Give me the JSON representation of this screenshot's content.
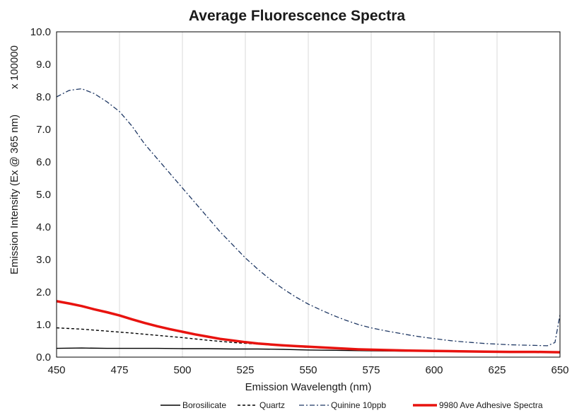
{
  "chart_data": {
    "type": "line",
    "title": "Average Fluorescence Spectra",
    "xlabel": "Emission Wavelength (nm)",
    "ylabel": "Emission Intensity (Ex @ 365 nm)",
    "y_multiplier_label": "x 100000",
    "xlim": [
      450,
      650
    ],
    "ylim": [
      0,
      10
    ],
    "x_ticks": [
      "450",
      "475",
      "500",
      "525",
      "550",
      "575",
      "600",
      "625",
      "650"
    ],
    "y_ticks": [
      "0.0",
      "1.0",
      "2.0",
      "3.0",
      "4.0",
      "5.0",
      "6.0",
      "7.0",
      "8.0",
      "9.0",
      "10.0"
    ],
    "grid": "vertical",
    "legend_position": "bottom",
    "series": [
      {
        "name": "Borosilicate",
        "color": "#000000",
        "style": "solid",
        "x": [
          450,
          460,
          470,
          480,
          490,
          500,
          510,
          520,
          530,
          540,
          550,
          560,
          570,
          580,
          590,
          600,
          610,
          620,
          630,
          640,
          650
        ],
        "y": [
          0.27,
          0.28,
          0.27,
          0.27,
          0.27,
          0.26,
          0.26,
          0.25,
          0.25,
          0.24,
          0.22,
          0.21,
          0.2,
          0.19,
          0.18,
          0.18,
          0.17,
          0.17,
          0.16,
          0.16,
          0.16
        ]
      },
      {
        "name": "Quartz",
        "color": "#000000",
        "style": "dashed",
        "x": [
          450,
          460,
          470,
          480,
          490,
          500,
          510,
          520,
          530,
          540,
          550,
          560,
          570,
          580,
          590,
          600,
          610,
          620,
          630,
          640,
          650
        ],
        "y": [
          0.9,
          0.86,
          0.8,
          0.74,
          0.67,
          0.6,
          0.52,
          0.45,
          0.4,
          0.35,
          0.3,
          0.27,
          0.24,
          0.21,
          0.2,
          0.19,
          0.18,
          0.17,
          0.16,
          0.16,
          0.16
        ]
      },
      {
        "name": "Quinine 10ppb",
        "color": "#1f3864",
        "style": "dashdot",
        "x": [
          450,
          455,
          460,
          465,
          470,
          475,
          480,
          485,
          490,
          495,
          500,
          505,
          510,
          515,
          520,
          525,
          530,
          535,
          540,
          545,
          550,
          555,
          560,
          565,
          570,
          575,
          580,
          585,
          590,
          595,
          600,
          605,
          610,
          615,
          620,
          625,
          630,
          635,
          640,
          645,
          648,
          650
        ],
        "y": [
          8.0,
          8.2,
          8.25,
          8.1,
          7.85,
          7.55,
          7.1,
          6.55,
          6.1,
          5.65,
          5.2,
          4.75,
          4.3,
          3.85,
          3.45,
          3.05,
          2.7,
          2.38,
          2.1,
          1.85,
          1.63,
          1.45,
          1.28,
          1.13,
          1.0,
          0.9,
          0.82,
          0.75,
          0.68,
          0.62,
          0.57,
          0.52,
          0.48,
          0.45,
          0.42,
          0.4,
          0.38,
          0.37,
          0.36,
          0.35,
          0.45,
          1.3
        ]
      },
      {
        "name": "9980 Ave Adhesive Spectra",
        "color": "#e8130f",
        "style": "solid-thick",
        "x": [
          450,
          455,
          460,
          465,
          470,
          475,
          480,
          485,
          490,
          495,
          500,
          505,
          510,
          515,
          520,
          525,
          530,
          535,
          540,
          545,
          550,
          560,
          570,
          580,
          590,
          600,
          610,
          620,
          630,
          640,
          650
        ],
        "y": [
          1.72,
          1.65,
          1.57,
          1.47,
          1.38,
          1.28,
          1.16,
          1.05,
          0.95,
          0.86,
          0.78,
          0.7,
          0.63,
          0.56,
          0.51,
          0.46,
          0.42,
          0.39,
          0.36,
          0.34,
          0.32,
          0.28,
          0.24,
          0.22,
          0.2,
          0.19,
          0.18,
          0.17,
          0.16,
          0.16,
          0.15
        ]
      }
    ]
  }
}
